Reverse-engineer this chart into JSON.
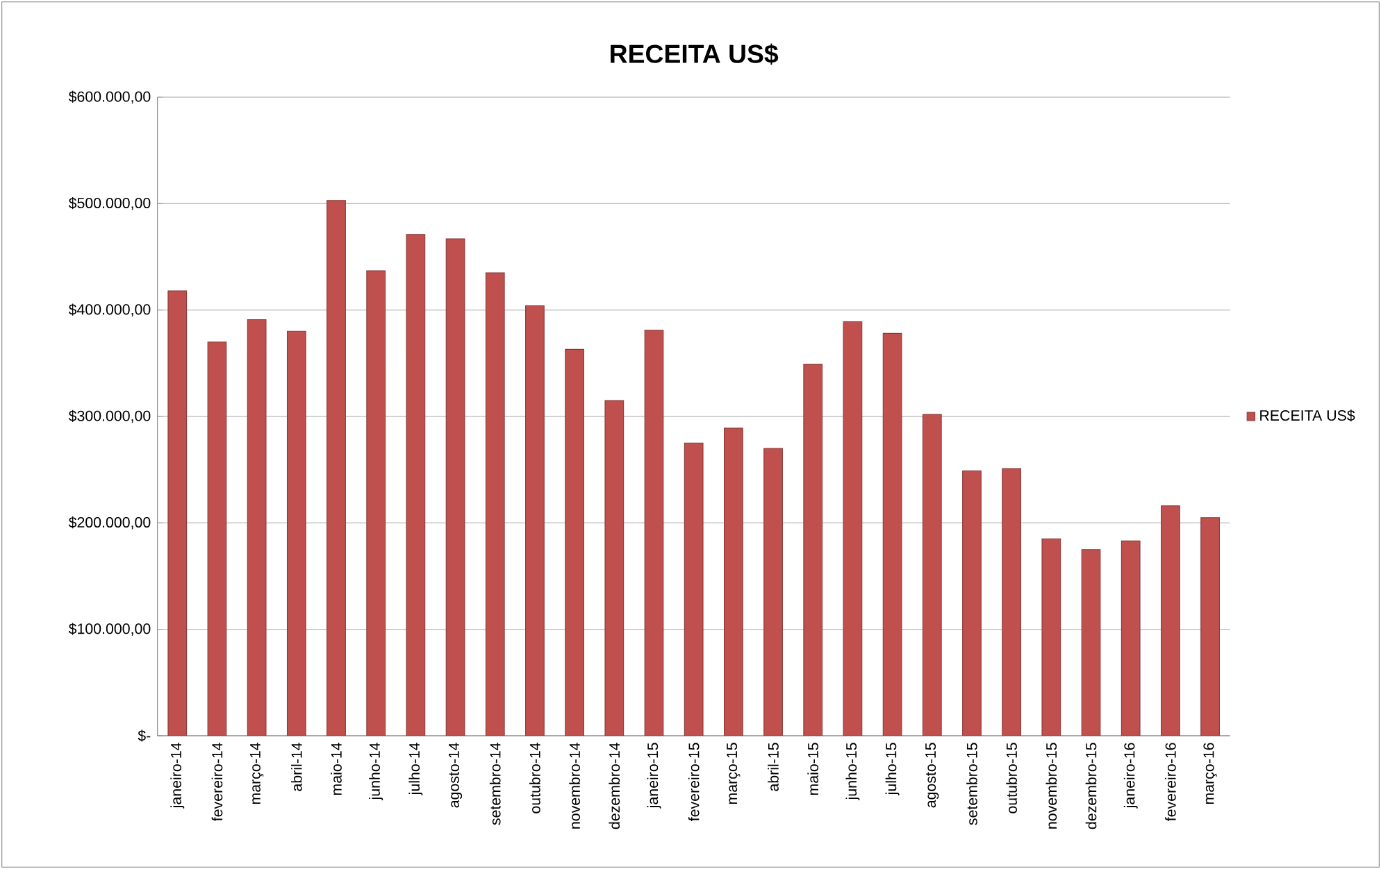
{
  "chart_data": {
    "type": "bar",
    "title": "RECEITA US$",
    "categories": [
      "janeiro-14",
      "fevereiro-14",
      "março-14",
      "abril-14",
      "maio-14",
      "junho-14",
      "julho-14",
      "agosto-14",
      "setembro-14",
      "outubro-14",
      "novembro-14",
      "dezembro-14",
      "janeiro-15",
      "fevereiro-15",
      "março-15",
      "abril-15",
      "maio-15",
      "junho-15",
      "julho-15",
      "agosto-15",
      "setembro-15",
      "outubro-15",
      "novembro-15",
      "dezembro-15",
      "janeiro-16",
      "fevereiro-16",
      "março-16"
    ],
    "series": [
      {
        "name": "RECEITA US$",
        "color": "#c0504d",
        "values": [
          418000,
          370000,
          391000,
          380000,
          503000,
          437000,
          471000,
          467000,
          435000,
          404000,
          363000,
          315000,
          381000,
          275000,
          289000,
          270000,
          349000,
          389000,
          378000,
          302000,
          249000,
          251000,
          185000,
          175000,
          183000,
          216000,
          205000
        ]
      }
    ],
    "ylim": [
      0,
      600000
    ],
    "yticks": [
      {
        "value": 0,
        "label": "$-"
      },
      {
        "value": 100000,
        "label": "$100.000,00"
      },
      {
        "value": 200000,
        "label": "$200.000,00"
      },
      {
        "value": 300000,
        "label": "$300.000,00"
      },
      {
        "value": 400000,
        "label": "$400.000,00"
      },
      {
        "value": 500000,
        "label": "$500.000,00"
      },
      {
        "value": 600000,
        "label": "$600.000,00"
      }
    ],
    "grid": "y",
    "legend": "right"
  }
}
